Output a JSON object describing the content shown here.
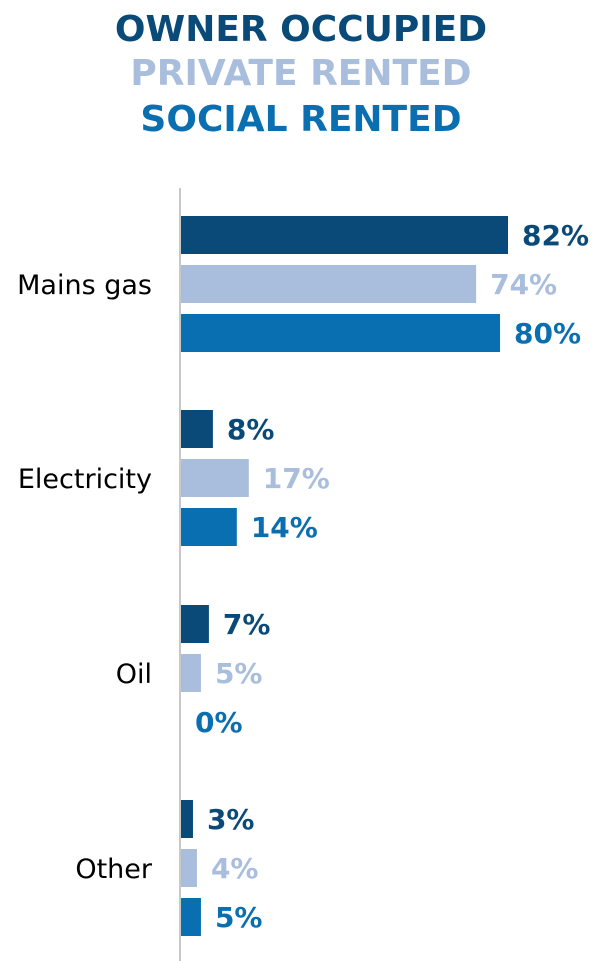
{
  "chart_data": {
    "type": "bar",
    "orientation": "horizontal",
    "categories": [
      "Mains gas",
      "Electricity",
      "Oil",
      "Other"
    ],
    "series": [
      {
        "name": "OWNER OCCUPIED",
        "color": "#0a4a78",
        "values": [
          82,
          8,
          7,
          3
        ]
      },
      {
        "name": "PRIVATE RENTED",
        "color": "#a9bedd",
        "values": [
          74,
          17,
          5,
          4
        ]
      },
      {
        "name": "SOCIAL RENTED",
        "color": "#0a6fb0",
        "values": [
          80,
          14,
          0,
          5
        ]
      }
    ],
    "value_suffix": "%",
    "xlim": [
      0,
      82
    ],
    "legend_placement": "top",
    "grid": false
  }
}
